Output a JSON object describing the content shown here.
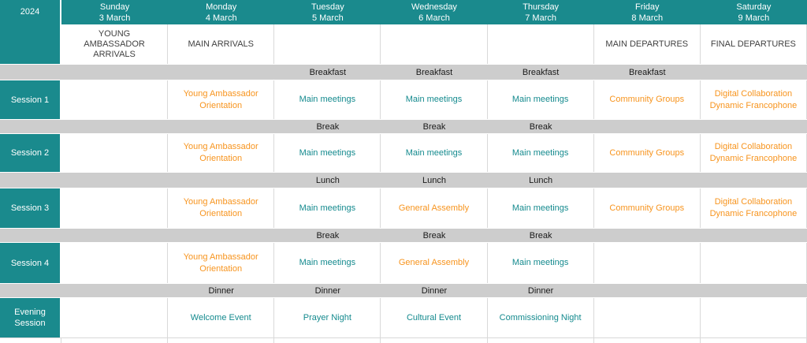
{
  "colors": {
    "teal_bg": "#1A8A8D",
    "teal_text": "#148A8E",
    "orange_text": "#F7941E",
    "band_bg": "#CDCDCD",
    "band_text": "#1A1A1A",
    "info_text": "#414141",
    "grid_line": "#D9D9D9",
    "header_text": "#FFFFFF"
  },
  "year_label": "2024",
  "days": [
    {
      "name": "Sunday",
      "date": "3 March"
    },
    {
      "name": "Monday",
      "date": "4 March"
    },
    {
      "name": "Tuesday",
      "date": "5 March"
    },
    {
      "name": "Wednesday",
      "date": "6 March"
    },
    {
      "name": "Thursday",
      "date": "7 March"
    },
    {
      "name": "Friday",
      "date": "8 March"
    },
    {
      "name": "Saturday",
      "date": "9 March"
    }
  ],
  "info_row": [
    "YOUNG AMBASSADOR ARRIVALS",
    "MAIN ARRIVALS",
    "",
    "",
    "",
    "MAIN DEPARTURES",
    "FINAL DEPARTURES"
  ],
  "rows": [
    {
      "kind": "band",
      "id": "breakfast",
      "labels": [
        "",
        "",
        "Breakfast",
        "Breakfast",
        "Breakfast",
        "Breakfast",
        ""
      ]
    },
    {
      "kind": "session",
      "id": "session-1",
      "label": "Session 1",
      "cells": [
        {
          "text": "",
          "color": ""
        },
        {
          "text": "Young Ambassador Orientation",
          "color": "orange"
        },
        {
          "text": "Main meetings",
          "color": "teal"
        },
        {
          "text": "Main meetings",
          "color": "teal"
        },
        {
          "text": "Main meetings",
          "color": "teal"
        },
        {
          "text": "Community Groups",
          "color": "orange"
        },
        {
          "text": "Digital Collaboration Dynamic Francophone",
          "color": "orange"
        }
      ]
    },
    {
      "kind": "band",
      "id": "break-1",
      "labels": [
        "",
        "",
        "Break",
        "Break",
        "Break",
        "",
        ""
      ]
    },
    {
      "kind": "session",
      "id": "session-2",
      "label": "Session 2",
      "cells": [
        {
          "text": "",
          "color": ""
        },
        {
          "text": "Young Ambassador Orientation",
          "color": "orange"
        },
        {
          "text": "Main meetings",
          "color": "teal"
        },
        {
          "text": "Main meetings",
          "color": "teal"
        },
        {
          "text": "Main meetings",
          "color": "teal"
        },
        {
          "text": "Community Groups",
          "color": "orange"
        },
        {
          "text": "Digital Collaboration Dynamic Francophone",
          "color": "orange"
        }
      ]
    },
    {
      "kind": "band",
      "id": "lunch",
      "labels": [
        "",
        "",
        "Lunch",
        "Lunch",
        "Lunch",
        "",
        ""
      ]
    },
    {
      "kind": "session",
      "id": "session-3",
      "label": "Session 3",
      "cells": [
        {
          "text": "",
          "color": ""
        },
        {
          "text": "Young Ambassador Orientation",
          "color": "orange"
        },
        {
          "text": "Main meetings",
          "color": "teal"
        },
        {
          "text": "General Assembly",
          "color": "orange"
        },
        {
          "text": "Main meetings",
          "color": "teal"
        },
        {
          "text": "Community Groups",
          "color": "orange"
        },
        {
          "text": "Digital Collaboration Dynamic Francophone",
          "color": "orange"
        }
      ]
    },
    {
      "kind": "band",
      "id": "break-2",
      "labels": [
        "",
        "",
        "Break",
        "Break",
        "Break",
        "",
        ""
      ]
    },
    {
      "kind": "session",
      "id": "session-4",
      "label": "Session 4",
      "cells": [
        {
          "text": "",
          "color": ""
        },
        {
          "text": "Young Ambassador Orientation",
          "color": "orange"
        },
        {
          "text": "Main meetings",
          "color": "teal"
        },
        {
          "text": "General Assembly",
          "color": "orange"
        },
        {
          "text": "Main meetings",
          "color": "teal"
        },
        {
          "text": "",
          "color": ""
        },
        {
          "text": "",
          "color": ""
        }
      ]
    },
    {
      "kind": "band",
      "id": "dinner",
      "labels": [
        "",
        "Dinner",
        "Dinner",
        "Dinner",
        "Dinner",
        "",
        ""
      ]
    },
    {
      "kind": "session",
      "id": "evening-session",
      "label": "Evening Session",
      "cells": [
        {
          "text": "",
          "color": ""
        },
        {
          "text": "Welcome Event",
          "color": "teal"
        },
        {
          "text": "Prayer Night",
          "color": "teal"
        },
        {
          "text": "Cultural Event",
          "color": "teal"
        },
        {
          "text": "Commissioning Night",
          "color": "teal"
        },
        {
          "text": "",
          "color": ""
        },
        {
          "text": "",
          "color": ""
        }
      ]
    }
  ]
}
